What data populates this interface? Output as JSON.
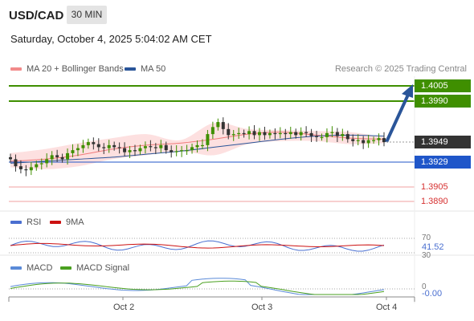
{
  "header": {
    "symbol": "USD/CAD",
    "timeframe": "30 MIN",
    "datetime": "Saturday, October 4, 2025 5:04:02 AM CET",
    "research": "Research © 2025 Trading Central"
  },
  "legend": {
    "ma20_bb": "MA 20 + Bollinger Bands",
    "ma50": "MA 50",
    "rsi": "RSI",
    "rsi_ma": "9MA",
    "macd": "MACD",
    "macd_signal": "MACD Signal"
  },
  "colors": {
    "up_candle": "#3f8f00",
    "down_candle": "#333333",
    "bollinger_fill": "#fde0e0",
    "ma20": "#f07a7a",
    "ma50": "#2a5599",
    "resistance": "#3f8f00",
    "pivot": "#1f56c9",
    "support": "#e06060",
    "arrow": "#2a5599",
    "rsi_line": "#4a6fd0",
    "rsi_ma": "#cc1111",
    "macd_line": "#5a8ad8",
    "macd_signal": "#4aa020"
  },
  "levels": {
    "r2": "1.4005",
    "r1": "1.3990",
    "last": "1.3949",
    "pivot": "1.3929",
    "s1": "1.3905",
    "s2": "1.3890"
  },
  "rsi_panel": {
    "level_70": "70",
    "current": "41.52",
    "level_30": "30"
  },
  "macd_panel": {
    "zero": "0",
    "current": "-0.00"
  },
  "x_axis": {
    "labels": [
      "Oct 2",
      "Oct 3",
      "Oct 4"
    ]
  },
  "chart_data": {
    "type": "line",
    "title": "USD/CAD",
    "subtitle": "30 MIN",
    "xlabel": "",
    "ylabel": "",
    "x_ticks": [
      "Oct 2",
      "Oct 3",
      "Oct 4"
    ],
    "ylim": [
      1.3885,
      1.401
    ],
    "series": [
      {
        "name": "USD/CAD",
        "values": [
          1.3932,
          1.3925,
          1.3922,
          1.3921,
          1.3924,
          1.3927,
          1.3928,
          1.3932,
          1.3936,
          1.3934,
          1.3932,
          1.3938,
          1.3941,
          1.3943,
          1.3946,
          1.3949,
          1.3947,
          1.3944,
          1.3943,
          1.3946,
          1.3944,
          1.3943,
          1.3939,
          1.3941,
          1.394,
          1.3943,
          1.3945,
          1.3944,
          1.3943,
          1.3946,
          1.3941,
          1.3939,
          1.394,
          1.3941,
          1.3941,
          1.3944,
          1.3946,
          1.3946,
          1.3957,
          1.3964,
          1.3969,
          1.3962,
          1.3956,
          1.3957,
          1.3958,
          1.3957,
          1.396,
          1.3956,
          1.3959,
          1.3956,
          1.3958,
          1.3957,
          1.3958,
          1.3957,
          1.3959,
          1.3956,
          1.3959,
          1.3958,
          1.3955,
          1.3954,
          1.3954,
          1.3958,
          1.3959,
          1.3955,
          1.3957,
          1.3952,
          1.395,
          1.3951,
          1.3948,
          1.3951,
          1.3951,
          1.3953,
          1.3949
        ]
      },
      {
        "name": "MA 20",
        "values": [
          1.393,
          1.3932,
          1.3936,
          1.3942,
          1.3946,
          1.3948,
          1.3952,
          1.3957,
          1.3959,
          1.3956,
          1.3953,
          1.3952
        ]
      },
      {
        "name": "MA 50",
        "values": [
          1.3928,
          1.393,
          1.3932,
          1.3934,
          1.3937,
          1.394,
          1.3944,
          1.3948,
          1.3952,
          1.3955,
          1.3956,
          1.3955
        ]
      }
    ],
    "bollinger_upper": [
      1.3938,
      1.3942,
      1.3948,
      1.3953,
      1.3957,
      1.3951,
      1.3968,
      1.3962,
      1.3961,
      1.396,
      1.3959,
      1.3954
    ],
    "bollinger_lower": [
      1.3924,
      1.3922,
      1.3925,
      1.3932,
      1.3936,
      1.394,
      1.3936,
      1.3947,
      1.395,
      1.395,
      1.3947,
      1.3948
    ],
    "levels": [
      1.4005,
      1.399,
      1.3929,
      1.3905,
      1.389
    ],
    "legend": "top-left",
    "grid": false
  }
}
